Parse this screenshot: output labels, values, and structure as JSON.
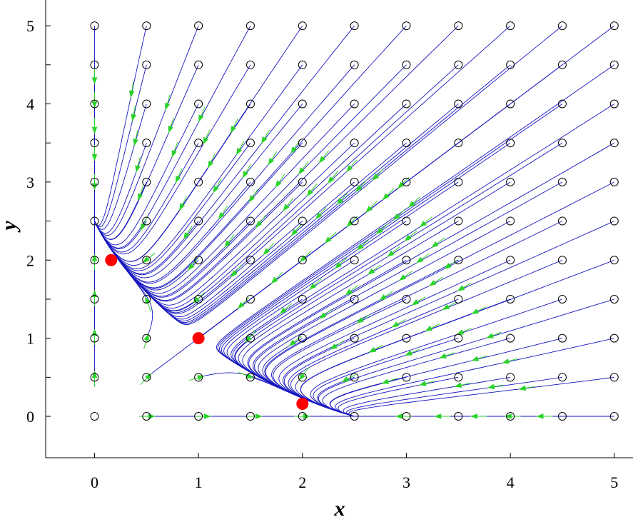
{
  "chart_data": {
    "type": "phase-portrait",
    "title": "",
    "xlabel": "x",
    "ylabel": "y",
    "xlim": [
      -0.47,
      5.18
    ],
    "ylim": [
      -0.53,
      5.33
    ],
    "xticks": [
      0,
      1,
      2,
      3,
      4,
      5
    ],
    "yticks": [
      0,
      0.5,
      1,
      1.5,
      2,
      2.5,
      3,
      3.5,
      4,
      4.5,
      5
    ],
    "ytick_labels": [
      "0",
      "",
      "1",
      "",
      "2",
      "",
      "3",
      "",
      "4",
      "",
      "5"
    ],
    "grid": false,
    "initial_points": {
      "x": [
        0,
        0.5,
        1,
        1.5,
        2,
        2.5,
        3,
        3.5,
        4,
        4.5,
        5
      ],
      "y": [
        0,
        0.5,
        1,
        1.5,
        2,
        2.5,
        3,
        3.5,
        4,
        4.5,
        5
      ]
    },
    "equilibria": [
      {
        "x": 0.16,
        "y": 2.0
      },
      {
        "x": 1.0,
        "y": 1.0
      },
      {
        "x": 2.0,
        "y": 0.16
      }
    ],
    "colors": {
      "trajectory": "#1515c0",
      "arrow": "#2ad22a",
      "equilibrium": "#ff0000",
      "marker": "#000000",
      "axis": "#000000"
    }
  }
}
